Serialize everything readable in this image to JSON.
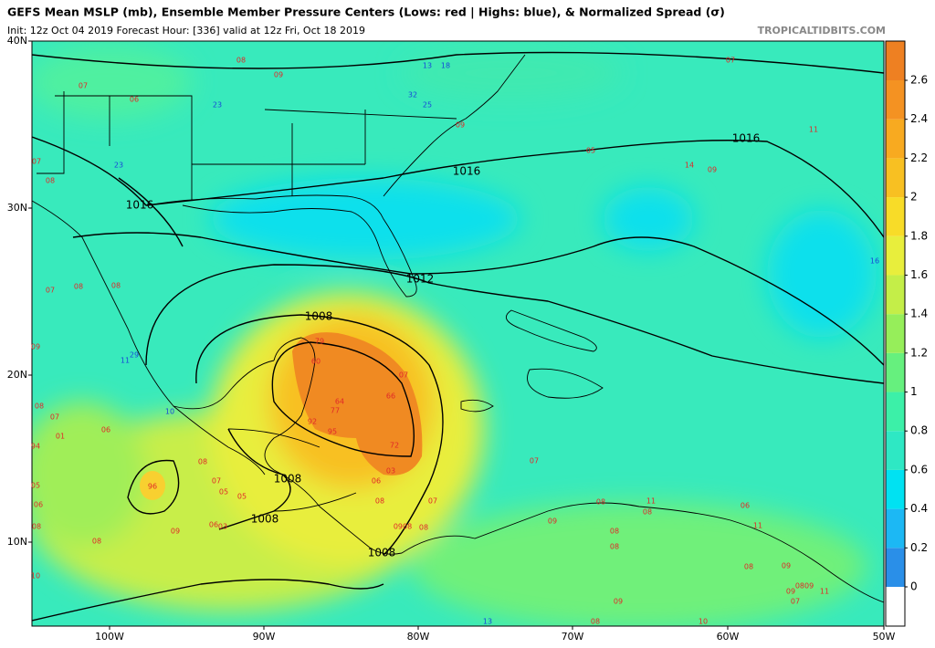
{
  "header": {
    "title": "GEFS Mean MSLP (mb), Ensemble Member Pressure Centers (Lows: red | Highs: blue), & Normalized Spread (σ)",
    "subtitle": "Init: 12z Oct 04 2019   Forecast Hour: [336]   valid at 12z Fri, Oct 18 2019",
    "credit": "TROPICALTIDBITS.COM"
  },
  "map": {
    "lat_labels": [
      "40N",
      "30N",
      "20N",
      "10N"
    ],
    "lon_labels": [
      "100W",
      "90W",
      "80W",
      "70W",
      "60W",
      "50W"
    ],
    "contour_labels": [
      "1016",
      "1016",
      "1016",
      "1012",
      "1008",
      "1008",
      "1008",
      "1008"
    ],
    "lows": [
      "08",
      "09",
      "07",
      "06",
      "09",
      "05",
      "14",
      "09",
      "07",
      "07",
      "08",
      "07",
      "08",
      "08",
      "09",
      "08",
      "07",
      "01",
      "94",
      "06",
      "96",
      "08",
      "07",
      "05",
      "05",
      "06",
      "03",
      "09",
      "08",
      "05",
      "06",
      "08",
      "10",
      "79",
      "60",
      "64",
      "77",
      "92",
      "95",
      "66",
      "07",
      "72",
      "03",
      "06",
      "08",
      "07",
      "0908",
      "08",
      "07",
      "08",
      "11",
      "08",
      "09",
      "08",
      "08",
      "06",
      "11",
      "09",
      "0809",
      "09",
      "11",
      "07",
      "08",
      "09",
      "08",
      "10",
      "11"
    ],
    "highs": [
      "18",
      "13",
      "32",
      "25",
      "23",
      "23",
      "11",
      "29",
      "10",
      "13",
      "16"
    ]
  },
  "colorbar": {
    "ticks": [
      0,
      0.2,
      0.4,
      0.6,
      0.8,
      1,
      1.2,
      1.4,
      1.6,
      1.8,
      2,
      2.2,
      2.4,
      2.6
    ],
    "colors": [
      "#2a8fe8",
      "#1cb8f4",
      "#00e2f2",
      "#2ee8c4",
      "#3cf0a8",
      "#66f07e",
      "#96ee5a",
      "#c4ee48",
      "#e8ee3c",
      "#f8dc28",
      "#f8c022",
      "#f8aa20",
      "#f49222",
      "#ee8022"
    ]
  }
}
